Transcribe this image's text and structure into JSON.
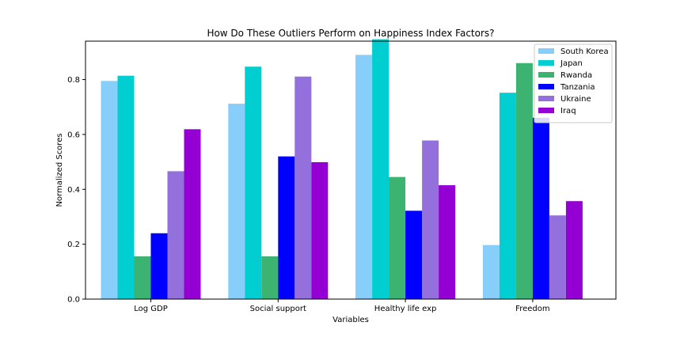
{
  "chart_data": {
    "type": "bar",
    "title": "How Do These Outliers Perform on Happiness Index Factors?",
    "xlabel": "Variables",
    "ylabel": "Normalized Scores",
    "categories": [
      "Log GDP",
      "Social support",
      "Healthy life exp",
      "Freedom"
    ],
    "ylim": [
      0,
      0.94
    ],
    "yticks": [
      "0.0",
      "0.2",
      "0.4",
      "0.6",
      "0.8"
    ],
    "grid": false,
    "legend_position": "top-right",
    "series": [
      {
        "name": "South Korea",
        "color": "#87cefa",
        "values": [
          0.795,
          0.712,
          0.89,
          0.197
        ]
      },
      {
        "name": "Japan",
        "color": "#00ced1",
        "values": [
          0.814,
          0.847,
          0.947,
          0.752
        ]
      },
      {
        "name": "Rwanda",
        "color": "#3cb371",
        "values": [
          0.156,
          0.156,
          0.445,
          0.86
        ]
      },
      {
        "name": "Tanzania",
        "color": "#0000ff",
        "values": [
          0.24,
          0.52,
          0.322,
          0.661
        ]
      },
      {
        "name": "Ukraine",
        "color": "#9370db",
        "values": [
          0.466,
          0.811,
          0.578,
          0.305
        ]
      },
      {
        "name": "Iraq",
        "color": "#9400d3",
        "values": [
          0.619,
          0.499,
          0.415,
          0.357
        ]
      }
    ]
  }
}
